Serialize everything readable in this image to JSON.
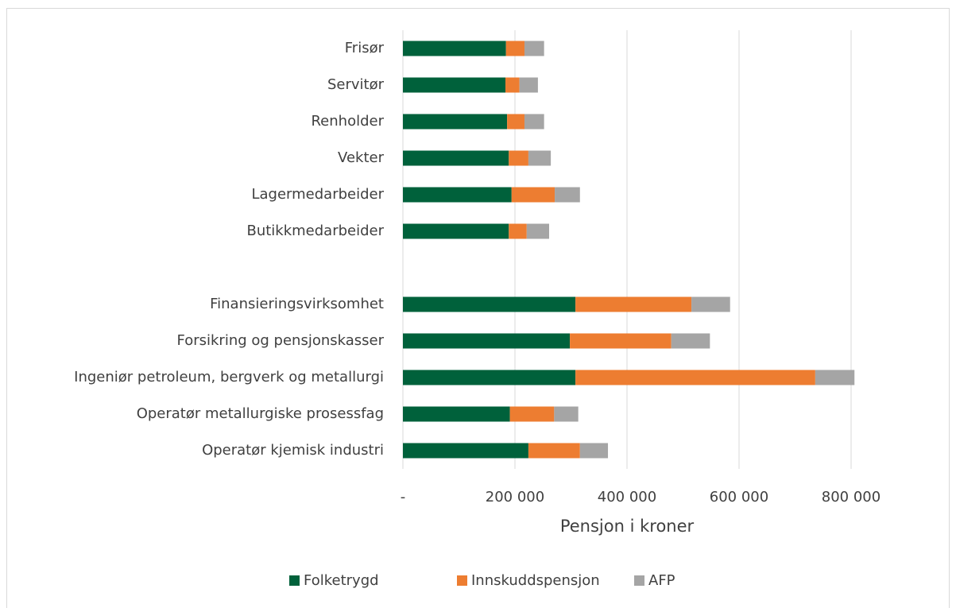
{
  "chart_data": {
    "type": "stacked-bar-horizontal",
    "x_label": "Pensjon i kroner",
    "categories": [
      "Frisør",
      "Servitør",
      "Renholder",
      "Vekter",
      "Lagermedarbeider",
      "Butikkmedarbeider",
      null,
      "Finansieringsvirksomhet ",
      "Forsikring og pensjonskasser",
      "Ingeniør petroleum, bergverk og metallurgi",
      "Operatør metallurgiske prosessfag",
      "Operatør kjemisk industri"
    ],
    "series": [
      {
        "name": "Folketrygd",
        "color": "#00613b",
        "values": [
          184000,
          183000,
          186000,
          189000,
          194000,
          189000,
          null,
          308000,
          298000,
          308000,
          191000,
          224000
        ]
      },
      {
        "name": "Innskuddspensjon",
        "color": "#ed7d31",
        "values": [
          33000,
          25000,
          31000,
          35000,
          77000,
          32000,
          null,
          207000,
          181000,
          428000,
          79000,
          92000
        ]
      },
      {
        "name": "AFP",
        "color": "#a5a5a5",
        "values": [
          35000,
          33000,
          35000,
          40000,
          45000,
          40000,
          null,
          69000,
          69000,
          70000,
          43000,
          50000
        ]
      }
    ],
    "xlim": [
      0,
      900000
    ],
    "xticks": [
      {
        "value": 0,
        "label": "-"
      },
      {
        "value": 200000,
        "label": "200 000"
      },
      {
        "value": 400000,
        "label": "400 000"
      },
      {
        "value": 600000,
        "label": "600 000"
      },
      {
        "value": 800000,
        "label": "800 000"
      }
    ],
    "grid": true,
    "legend": "bottom"
  }
}
